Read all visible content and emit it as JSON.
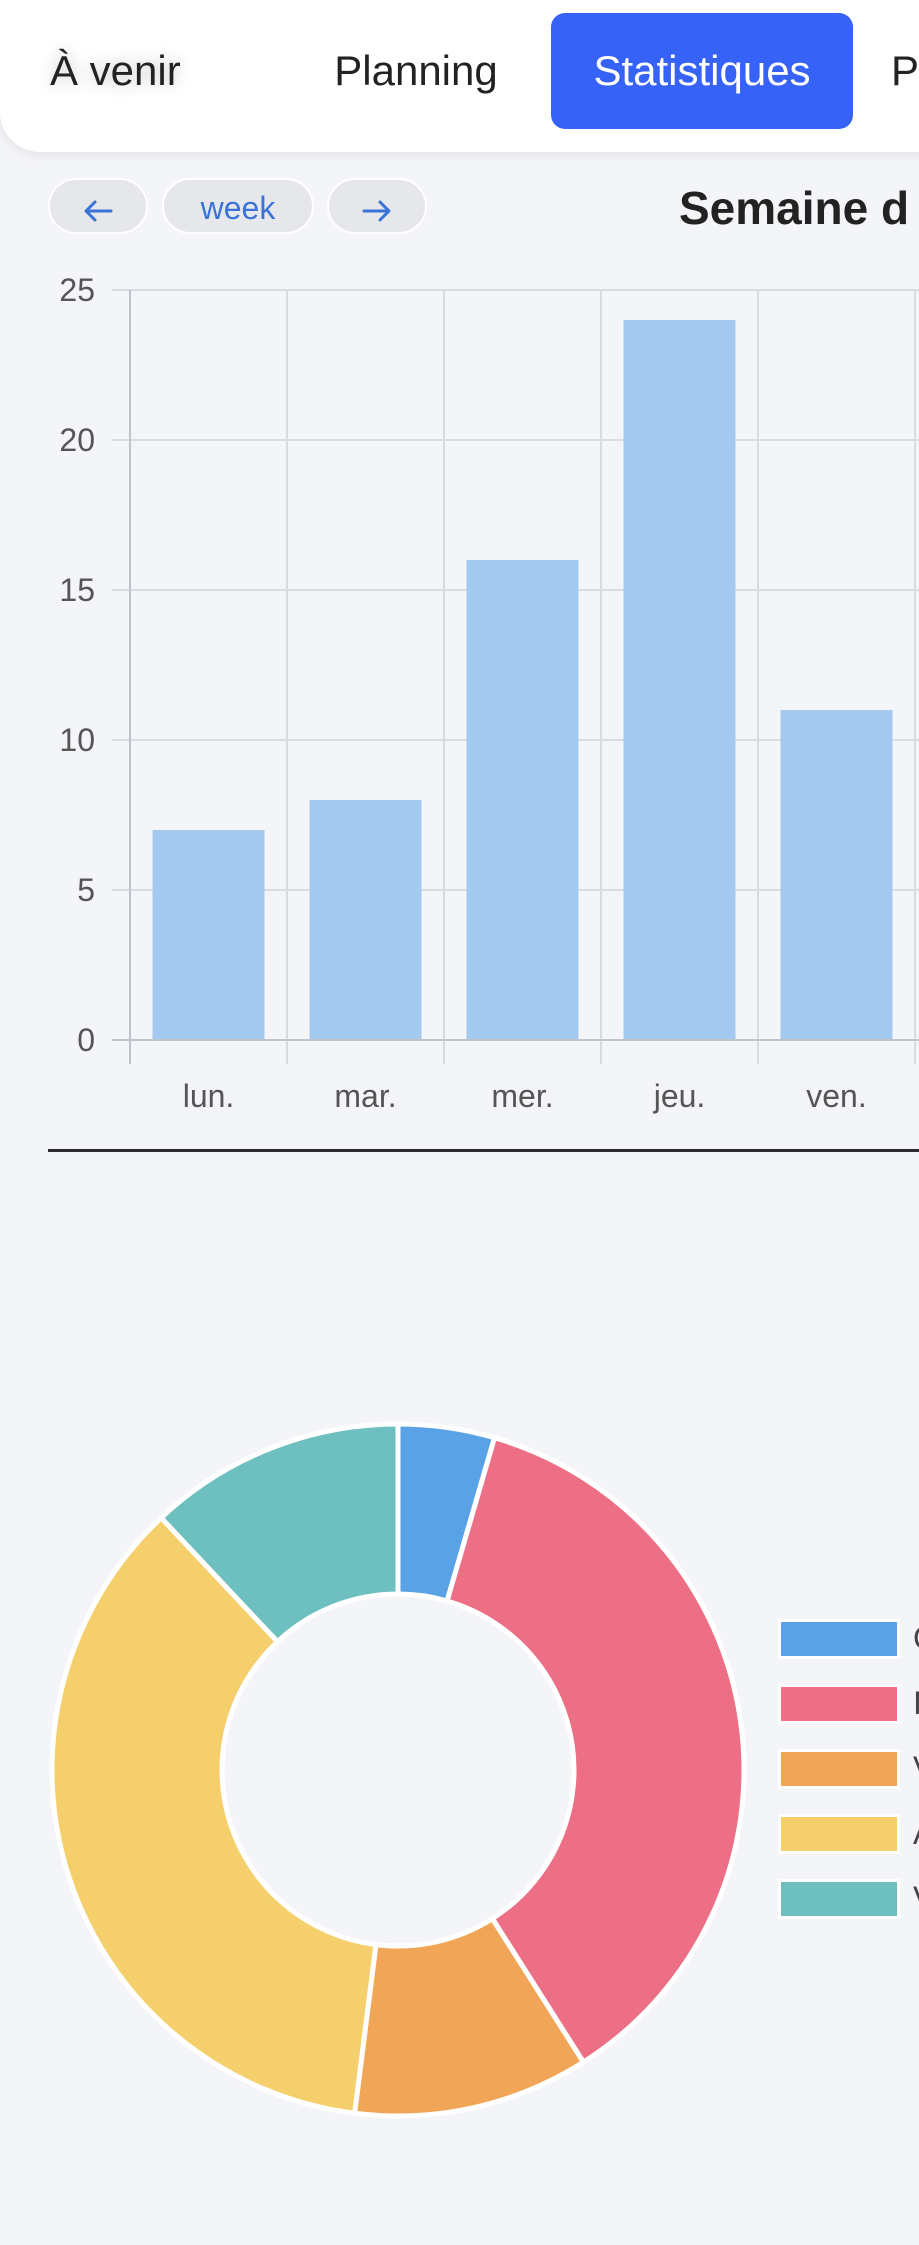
{
  "tabs": [
    {
      "label": "À venir",
      "active": false
    },
    {
      "label": "Planning",
      "active": false
    },
    {
      "label": "Statistiques",
      "active": true
    },
    {
      "label": "P",
      "active": false
    }
  ],
  "nav": {
    "prev_icon": "arrow-left-icon",
    "period_label": "week",
    "next_icon": "arrow-right-icon"
  },
  "week_title": "Semaine d",
  "colors": {
    "accent": "#3762f8",
    "bar": "#a3c9ee",
    "link": "#3a73d8"
  },
  "chart_data": [
    {
      "type": "bar",
      "categories": [
        "lun.",
        "mar.",
        "mer.",
        "jeu.",
        "ven."
      ],
      "values": [
        7,
        8,
        16,
        24,
        11
      ],
      "yticks": [
        0,
        5,
        10,
        15,
        20,
        25
      ],
      "ylim": [
        0,
        25
      ],
      "grid": true,
      "title": "",
      "xlabel": "",
      "ylabel": "",
      "color": "#a3c9ee"
    },
    {
      "type": "pie",
      "donut": true,
      "values": [
        4.5,
        36.5,
        11,
        36,
        12
      ],
      "colors": [
        "#5aa2e6",
        "#ec6f86",
        "#f0a656",
        "#f5cf6c",
        "#6ebfbf"
      ],
      "legend_labels": [
        "C",
        "I",
        "V",
        "A",
        "V"
      ],
      "legend": "right"
    }
  ]
}
